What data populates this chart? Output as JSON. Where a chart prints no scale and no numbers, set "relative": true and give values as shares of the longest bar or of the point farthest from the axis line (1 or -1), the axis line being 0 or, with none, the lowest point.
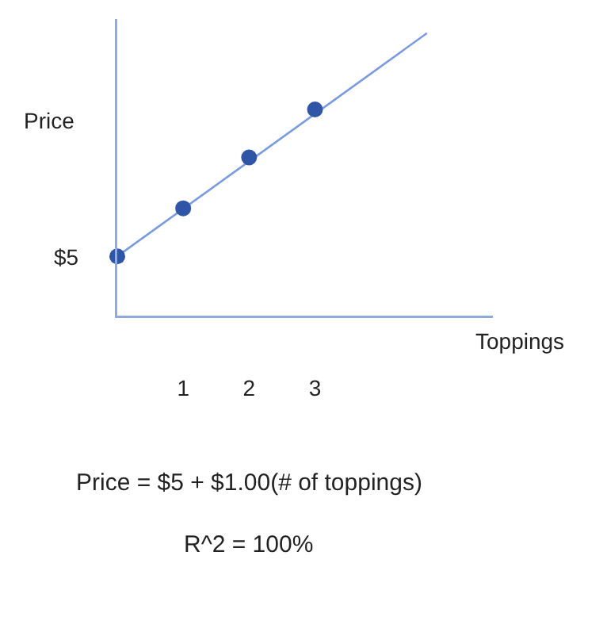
{
  "chart_data": {
    "type": "scatter",
    "relative": true,
    "xlabel": "Toppings",
    "ylabel": "Price",
    "x": [
      0,
      1,
      2,
      3
    ],
    "xlim": [
      0,
      5.7
    ],
    "xticks": [
      1,
      2,
      3
    ],
    "series": [
      {
        "type": "scatter",
        "color": "#2f55a6",
        "marker": "circle",
        "values": [
          0.21,
          0.38,
          0.56,
          0.73
        ]
      },
      {
        "type": "line",
        "color": "#7a9be0",
        "marker": "none",
        "line_style": "solid",
        "x": [
          0,
          4.7
        ],
        "values": [
          0.21,
          1.0
        ]
      }
    ],
    "annotations": [
      {
        "text": "$5",
        "x": 0,
        "y": 0.21
      },
      "Price = $5 + $1.00(# of toppings)",
      "R^2 = 100%"
    ],
    "grid": false
  }
}
